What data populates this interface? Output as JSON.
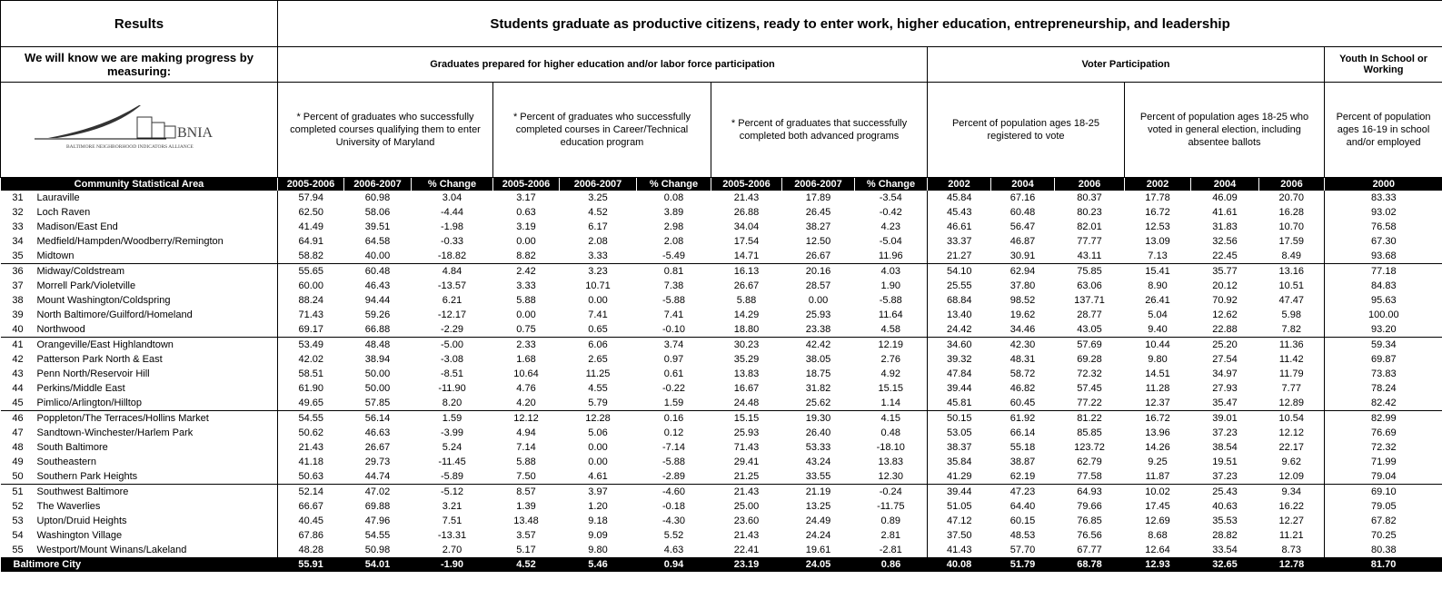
{
  "header": {
    "results": "Results",
    "goal": "Students graduate as productive citizens, ready to enter work, higher education, entrepreneurship, and leadership",
    "measuring": "We will know we are making progress by measuring:"
  },
  "logo": {
    "name": "BNIA",
    "subtitle": "BALTIMORE NEIGHBORHOOD INDICATORS ALLIANCE"
  },
  "groups": [
    {
      "title": "Graduates prepared for higher education and/or labor force participation",
      "indicators": [
        {
          "title": "* Percent of graduates who successfully completed courses qualifying them to enter University of Maryland",
          "columns": [
            "2005-2006",
            "2006-2007",
            "% Change"
          ]
        },
        {
          "title": "* Percent of graduates who successfully completed courses in Career/Technical education program",
          "columns": [
            "2005-2006",
            "2006-2007",
            "% Change"
          ]
        },
        {
          "title": "* Percent of graduates that successfully completed both advanced programs",
          "columns": [
            "2005-2006",
            "2006-2007",
            "% Change"
          ]
        }
      ]
    },
    {
      "title": "Voter Participation",
      "indicators": [
        {
          "title": "Percent of population ages 18-25 registered to vote",
          "columns": [
            "2002",
            "2004",
            "2006"
          ]
        },
        {
          "title": "Percent of population ages 18-25 who voted in general election, including absentee ballots",
          "columns": [
            "2002",
            "2004",
            "2006"
          ]
        }
      ]
    },
    {
      "title": "Youth In School or Working",
      "indicators": [
        {
          "title": "Percent of population ages 16-19 in school and/or employed",
          "columns": [
            "2000"
          ]
        }
      ]
    }
  ],
  "area_header": "Community Statistical Area",
  "rows": [
    {
      "id": "31",
      "name": "Lauraville",
      "values": [
        "57.94",
        "60.98",
        "3.04",
        "3.17",
        "3.25",
        "0.08",
        "21.43",
        "17.89",
        "-3.54",
        "45.84",
        "67.16",
        "80.37",
        "17.78",
        "46.09",
        "20.70",
        "83.33"
      ]
    },
    {
      "id": "32",
      "name": "Loch Raven",
      "values": [
        "62.50",
        "58.06",
        "-4.44",
        "0.63",
        "4.52",
        "3.89",
        "26.88",
        "26.45",
        "-0.42",
        "45.43",
        "60.48",
        "80.23",
        "16.72",
        "41.61",
        "16.28",
        "93.02"
      ]
    },
    {
      "id": "33",
      "name": "Madison/East End",
      "values": [
        "41.49",
        "39.51",
        "-1.98",
        "3.19",
        "6.17",
        "2.98",
        "34.04",
        "38.27",
        "4.23",
        "46.61",
        "56.47",
        "82.01",
        "12.53",
        "31.83",
        "10.70",
        "76.58"
      ]
    },
    {
      "id": "34",
      "name": "Medfield/Hampden/Woodberry/Remington",
      "values": [
        "64.91",
        "64.58",
        "-0.33",
        "0.00",
        "2.08",
        "2.08",
        "17.54",
        "12.50",
        "-5.04",
        "33.37",
        "46.87",
        "77.77",
        "13.09",
        "32.56",
        "17.59",
        "67.30"
      ]
    },
    {
      "id": "35",
      "name": "Midtown",
      "values": [
        "58.82",
        "40.00",
        "-18.82",
        "8.82",
        "3.33",
        "-5.49",
        "14.71",
        "26.67",
        "11.96",
        "21.27",
        "30.91",
        "43.11",
        "7.13",
        "22.45",
        "8.49",
        "93.68"
      ]
    },
    {
      "id": "36",
      "name": "Midway/Coldstream",
      "values": [
        "55.65",
        "60.48",
        "4.84",
        "2.42",
        "3.23",
        "0.81",
        "16.13",
        "20.16",
        "4.03",
        "54.10",
        "62.94",
        "75.85",
        "15.41",
        "35.77",
        "13.16",
        "77.18"
      ]
    },
    {
      "id": "37",
      "name": "Morrell Park/Violetville",
      "values": [
        "60.00",
        "46.43",
        "-13.57",
        "3.33",
        "10.71",
        "7.38",
        "26.67",
        "28.57",
        "1.90",
        "25.55",
        "37.80",
        "63.06",
        "8.90",
        "20.12",
        "10.51",
        "84.83"
      ]
    },
    {
      "id": "38",
      "name": "Mount Washington/Coldspring",
      "values": [
        "88.24",
        "94.44",
        "6.21",
        "5.88",
        "0.00",
        "-5.88",
        "5.88",
        "0.00",
        "-5.88",
        "68.84",
        "98.52",
        "137.71",
        "26.41",
        "70.92",
        "47.47",
        "95.63"
      ]
    },
    {
      "id": "39",
      "name": "North Baltimore/Guilford/Homeland",
      "values": [
        "71.43",
        "59.26",
        "-12.17",
        "0.00",
        "7.41",
        "7.41",
        "14.29",
        "25.93",
        "11.64",
        "13.40",
        "19.62",
        "28.77",
        "5.04",
        "12.62",
        "5.98",
        "100.00"
      ]
    },
    {
      "id": "40",
      "name": "Northwood",
      "values": [
        "69.17",
        "66.88",
        "-2.29",
        "0.75",
        "0.65",
        "-0.10",
        "18.80",
        "23.38",
        "4.58",
        "24.42",
        "34.46",
        "43.05",
        "9.40",
        "22.88",
        "7.82",
        "93.20"
      ]
    },
    {
      "id": "41",
      "name": "Orangeville/East Highlandtown",
      "values": [
        "53.49",
        "48.48",
        "-5.00",
        "2.33",
        "6.06",
        "3.74",
        "30.23",
        "42.42",
        "12.19",
        "34.60",
        "42.30",
        "57.69",
        "10.44",
        "25.20",
        "11.36",
        "59.34"
      ]
    },
    {
      "id": "42",
      "name": "Patterson Park North & East",
      "values": [
        "42.02",
        "38.94",
        "-3.08",
        "1.68",
        "2.65",
        "0.97",
        "35.29",
        "38.05",
        "2.76",
        "39.32",
        "48.31",
        "69.28",
        "9.80",
        "27.54",
        "11.42",
        "69.87"
      ]
    },
    {
      "id": "43",
      "name": "Penn North/Reservoir Hill",
      "values": [
        "58.51",
        "50.00",
        "-8.51",
        "10.64",
        "11.25",
        "0.61",
        "13.83",
        "18.75",
        "4.92",
        "47.84",
        "58.72",
        "72.32",
        "14.51",
        "34.97",
        "11.79",
        "73.83"
      ]
    },
    {
      "id": "44",
      "name": "Perkins/Middle East",
      "values": [
        "61.90",
        "50.00",
        "-11.90",
        "4.76",
        "4.55",
        "-0.22",
        "16.67",
        "31.82",
        "15.15",
        "39.44",
        "46.82",
        "57.45",
        "11.28",
        "27.93",
        "7.77",
        "78.24"
      ]
    },
    {
      "id": "45",
      "name": "Pimlico/Arlington/Hilltop",
      "values": [
        "49.65",
        "57.85",
        "8.20",
        "4.20",
        "5.79",
        "1.59",
        "24.48",
        "25.62",
        "1.14",
        "45.81",
        "60.45",
        "77.22",
        "12.37",
        "35.47",
        "12.89",
        "82.42"
      ]
    },
    {
      "id": "46",
      "name": "Poppleton/The Terraces/Hollins Market",
      "values": [
        "54.55",
        "56.14",
        "1.59",
        "12.12",
        "12.28",
        "0.16",
        "15.15",
        "19.30",
        "4.15",
        "50.15",
        "61.92",
        "81.22",
        "16.72",
        "39.01",
        "10.54",
        "82.99"
      ]
    },
    {
      "id": "47",
      "name": "Sandtown-Winchester/Harlem Park",
      "values": [
        "50.62",
        "46.63",
        "-3.99",
        "4.94",
        "5.06",
        "0.12",
        "25.93",
        "26.40",
        "0.48",
        "53.05",
        "66.14",
        "85.85",
        "13.96",
        "37.23",
        "12.12",
        "76.69"
      ]
    },
    {
      "id": "48",
      "name": "South Baltimore",
      "values": [
        "21.43",
        "26.67",
        "5.24",
        "7.14",
        "0.00",
        "-7.14",
        "71.43",
        "53.33",
        "-18.10",
        "38.37",
        "55.18",
        "123.72",
        "14.26",
        "38.54",
        "22.17",
        "72.32"
      ]
    },
    {
      "id": "49",
      "name": "Southeastern",
      "values": [
        "41.18",
        "29.73",
        "-11.45",
        "5.88",
        "0.00",
        "-5.88",
        "29.41",
        "43.24",
        "13.83",
        "35.84",
        "38.87",
        "62.79",
        "9.25",
        "19.51",
        "9.62",
        "71.99"
      ]
    },
    {
      "id": "50",
      "name": "Southern Park Heights",
      "values": [
        "50.63",
        "44.74",
        "-5.89",
        "7.50",
        "4.61",
        "-2.89",
        "21.25",
        "33.55",
        "12.30",
        "41.29",
        "62.19",
        "77.58",
        "11.87",
        "37.23",
        "12.09",
        "79.04"
      ]
    },
    {
      "id": "51",
      "name": "Southwest Baltimore",
      "values": [
        "52.14",
        "47.02",
        "-5.12",
        "8.57",
        "3.97",
        "-4.60",
        "21.43",
        "21.19",
        "-0.24",
        "39.44",
        "47.23",
        "64.93",
        "10.02",
        "25.43",
        "9.34",
        "69.10"
      ]
    },
    {
      "id": "52",
      "name": "The Waverlies",
      "values": [
        "66.67",
        "69.88",
        "3.21",
        "1.39",
        "1.20",
        "-0.18",
        "25.00",
        "13.25",
        "-11.75",
        "51.05",
        "64.40",
        "79.66",
        "17.45",
        "40.63",
        "16.22",
        "79.05"
      ]
    },
    {
      "id": "53",
      "name": "Upton/Druid Heights",
      "values": [
        "40.45",
        "47.96",
        "7.51",
        "13.48",
        "9.18",
        "-4.30",
        "23.60",
        "24.49",
        "0.89",
        "47.12",
        "60.15",
        "76.85",
        "12.69",
        "35.53",
        "12.27",
        "67.82"
      ]
    },
    {
      "id": "54",
      "name": "Washington Village",
      "values": [
        "67.86",
        "54.55",
        "-13.31",
        "3.57",
        "9.09",
        "5.52",
        "21.43",
        "24.24",
        "2.81",
        "37.50",
        "48.53",
        "76.56",
        "8.68",
        "28.82",
        "11.21",
        "70.25"
      ]
    },
    {
      "id": "55",
      "name": "Westport/Mount Winans/Lakeland",
      "values": [
        "48.28",
        "50.98",
        "2.70",
        "5.17",
        "9.80",
        "4.63",
        "22.41",
        "19.61",
        "-2.81",
        "41.43",
        "57.70",
        "67.77",
        "12.64",
        "33.54",
        "8.73",
        "80.38"
      ]
    }
  ],
  "total": {
    "name": "Baltimore City",
    "values": [
      "55.91",
      "54.01",
      "-1.90",
      "4.52",
      "5.46",
      "0.94",
      "23.19",
      "24.05",
      "0.86",
      "40.08",
      "51.79",
      "68.78",
      "12.93",
      "32.65",
      "12.78",
      "81.70"
    ]
  }
}
